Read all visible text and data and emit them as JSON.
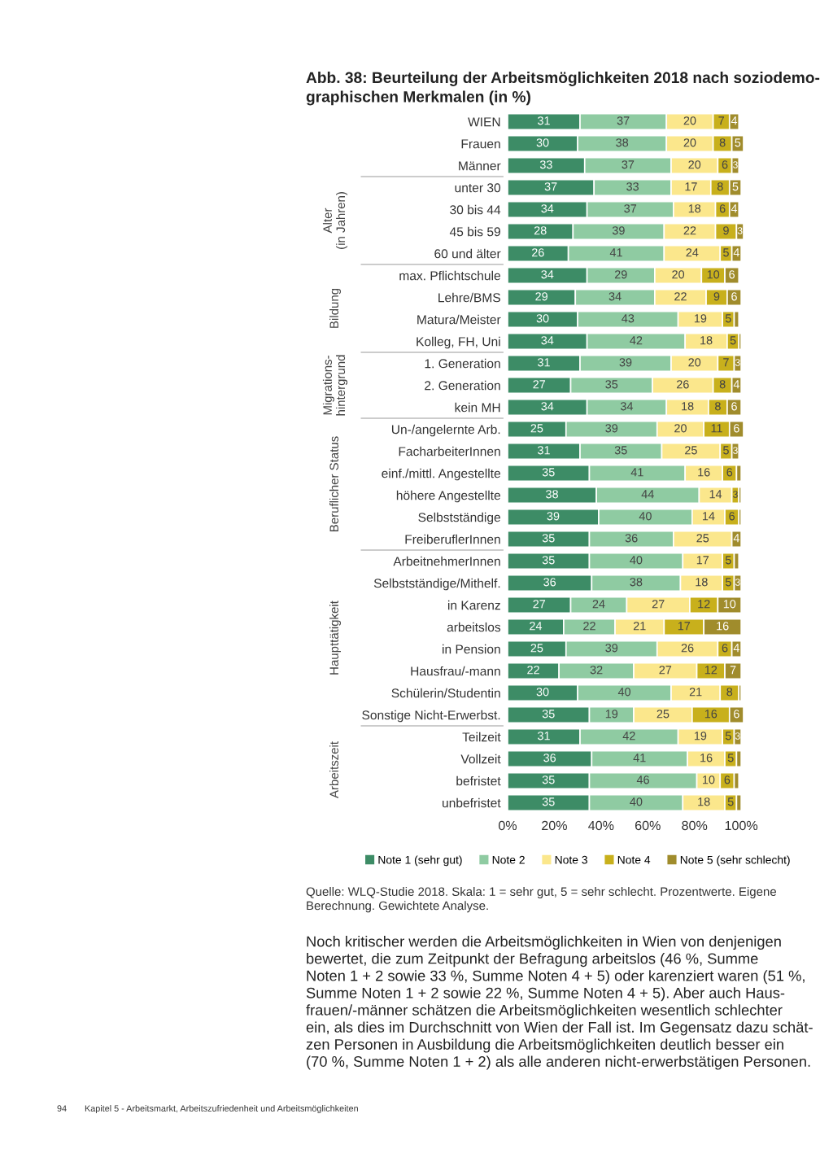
{
  "chart_data": {
    "type": "bar",
    "orientation": "horizontal",
    "stacked": true,
    "grid": false,
    "legend": "bottom",
    "title": "Abb. 38: Beurteilung der Arbeitsmöglichkeiten 2018 nach soziodemo-\ngraphischen Merkmalen (in %)",
    "categories": [
      "WIEN",
      "Frauen",
      "Männer",
      "unter 30",
      "30 bis 44",
      "45 bis 59",
      "60 und älter",
      "max. Pflichtschule",
      "Lehre/BMS",
      "Matura/Meister",
      "Kolleg, FH, Uni",
      "1. Generation",
      "2. Generation",
      "kein MH",
      "Un-/angelernte Arb.",
      "FacharbeiterInnen",
      "einf./mittl. Angestellte",
      "höhere Angestellte",
      "Selbstständige",
      "FreiberuflerInnen",
      "ArbeitnehmerInnen",
      "Selbstständige/Mithelf.",
      "in Karenz",
      "arbeitslos",
      "in Pension",
      "Hausfrau/-mann",
      "Schülerin/Studentin",
      "Sonstige Nicht-Erwerbst.",
      "Teilzeit",
      "Vollzeit",
      "befristet",
      "unbefristet"
    ],
    "xlim": [
      0,
      101
    ],
    "xticks": [
      {
        "value": 0,
        "label": "0%"
      },
      {
        "value": 20,
        "label": "20%"
      },
      {
        "value": 40,
        "label": "40%"
      },
      {
        "value": 60,
        "label": "60%"
      },
      {
        "value": 80,
        "label": "80%"
      },
      {
        "value": 100,
        "label": "100%"
      }
    ],
    "series": [
      {
        "name": "Note 1 (sehr gut)",
        "color": "#3d8c66",
        "values": [
          31,
          30,
          33,
          37,
          34,
          28,
          26,
          34,
          29,
          30,
          34,
          31,
          27,
          34,
          25,
          31,
          35,
          38,
          39,
          35,
          35,
          36,
          27,
          24,
          25,
          22,
          30,
          35,
          31,
          36,
          35,
          35
        ],
        "value_labels": [
          "31",
          "30",
          "33",
          "37",
          "34",
          "28",
          "26",
          "34",
          "29",
          "30",
          "34",
          "31",
          "27",
          "34",
          "25",
          "31",
          "35",
          "38",
          "39",
          "35",
          "35",
          "36",
          "27",
          "24",
          "25",
          "22",
          "30",
          "35",
          "31",
          "36",
          "35",
          "35"
        ]
      },
      {
        "name": "Note 2",
        "color": "#8fcba2",
        "values": [
          37,
          38,
          37,
          33,
          37,
          39,
          41,
          29,
          34,
          43,
          42,
          39,
          35,
          34,
          39,
          35,
          41,
          44,
          40,
          36,
          40,
          38,
          24,
          22,
          39,
          32,
          40,
          19,
          42,
          41,
          46,
          40
        ],
        "value_labels": [
          "37",
          "38",
          "37",
          "33",
          "37",
          "39",
          "41",
          "29",
          "34",
          "43",
          "42",
          "39",
          "35",
          "34",
          "39",
          "35",
          "41",
          "44",
          "40",
          "36",
          "40",
          "38",
          "24",
          "22",
          "39",
          "32",
          "40",
          "19",
          "42",
          "41",
          "46",
          "40"
        ]
      },
      {
        "name": "Note 3",
        "color": "#fbe78c",
        "values": [
          20,
          20,
          20,
          17,
          18,
          22,
          24,
          20,
          22,
          19,
          18,
          20,
          26,
          18,
          20,
          25,
          16,
          14,
          14,
          25,
          17,
          18,
          27,
          21,
          26,
          27,
          21,
          25,
          19,
          16,
          10,
          18
        ],
        "value_labels": [
          "20",
          "20",
          "20",
          "17",
          "18",
          "22",
          "24",
          "20",
          "22",
          "19",
          "18",
          "20",
          "26",
          "18",
          "20",
          "25",
          "16",
          "14",
          "14",
          "25",
          "17",
          "18",
          "27",
          "21",
          "26",
          "27",
          "21",
          "25",
          "19",
          "16",
          "10",
          "18"
        ]
      },
      {
        "name": "Note 4",
        "color": "#c8b01c",
        "values": [
          7,
          8,
          6,
          8,
          6,
          9,
          5,
          10,
          9,
          5,
          5,
          7,
          8,
          8,
          11,
          5,
          6,
          3,
          6,
          null,
          5,
          5,
          12,
          17,
          6,
          12,
          8,
          16,
          5,
          5,
          6,
          5
        ],
        "value_labels": [
          "7",
          "8",
          "6",
          "8",
          "6",
          "9",
          "5",
          "10",
          "9",
          "5",
          "5",
          "7",
          "8",
          "8",
          "11",
          "5",
          "6",
          "3",
          "6",
          null,
          "5",
          "5",
          "12",
          "17",
          "6",
          "12",
          "8",
          "16",
          "5",
          "5",
          "6",
          "5"
        ]
      },
      {
        "name": "Note 5 (sehr schlecht)",
        "color": "#a08c2c",
        "values": [
          4,
          5,
          3,
          5,
          4,
          3,
          4,
          6,
          6,
          2,
          1,
          3,
          4,
          6,
          6,
          3,
          2,
          1,
          1,
          4,
          2,
          3,
          10,
          16,
          4,
          7,
          1,
          6,
          3,
          2,
          2,
          2
        ],
        "value_labels": [
          "4",
          "5",
          "3",
          "5",
          "4",
          "3",
          "4",
          "6",
          "6",
          null,
          null,
          "3",
          "4",
          "6",
          "6",
          "3",
          null,
          null,
          null,
          "4",
          null,
          "3",
          "10",
          "16",
          "4",
          "7",
          null,
          "6",
          "3",
          null,
          null,
          null
        ]
      }
    ],
    "annotations": [
      "Alter\n(in Jahren)",
      "Bildung",
      "Migrations-\nhintergrund",
      "Beruflicher Status",
      "Haupttätigkeit",
      "Arbeitszeit",
      "Quelle: WLQ-Studie 2018. Skala: 1 = sehr gut, 5 = sehr schlecht. Prozentwerte. Eigene\nBerechnung. Gewichtete Analyse.",
      "Noch kritischer werden die Arbeitsmöglichkeiten in Wien von denjenigen\nbewertet, die zum Zeitpunkt der Befragung arbeitslos (46 %, Summe\nNoten 1 + 2 sowie 33 %, Summe Noten 4 + 5) oder karenziert waren (51 %,\nSumme Noten 1 + 2 sowie 22 %, Summe Noten 4 + 5). Aber auch Haus-\nfrauen/-männer schätzen die Arbeitsmöglichkeiten wesentlich schlechter\nein, als dies im Durchschnitt von Wien der Fall ist. Im Gegensatz dazu schät-\nzen Personen in Ausbildung die Arbeitsmöglichkeiten deutlich besser ein\n(70 %, Summe Noten 1 + 2) als alle anderen nicht-erwerbstätigen Personen.",
      "94",
      "Kapitel 5 - Arbeitsmarkt, Arbeitszufriedenheit und Arbeitsmöglichkeiten"
    ]
  }
}
